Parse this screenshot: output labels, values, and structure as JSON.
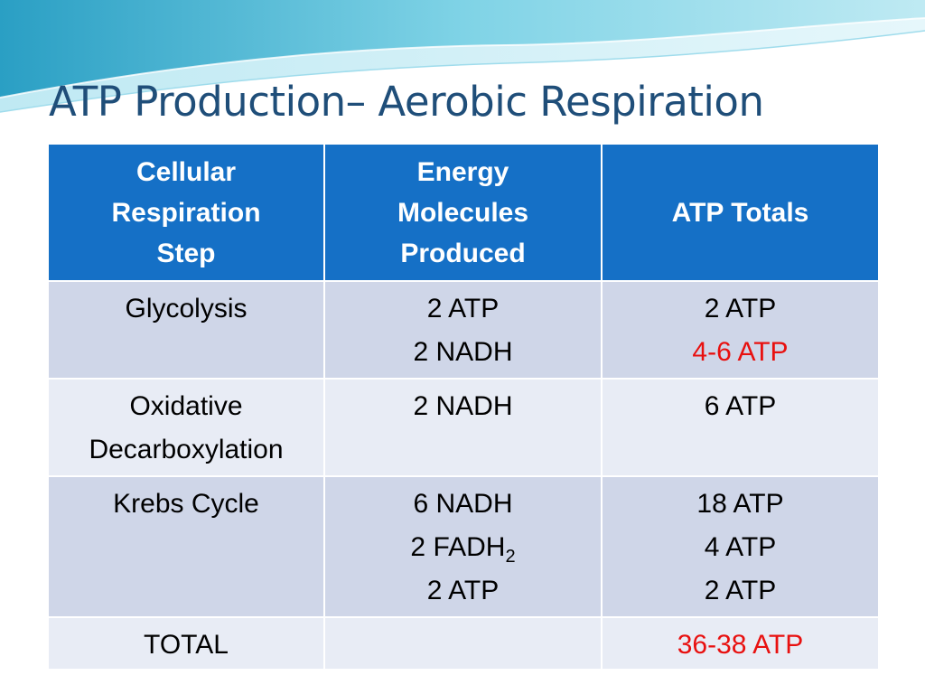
{
  "slide": {
    "title": "ATP Production– Aerobic Respiration"
  },
  "table": {
    "headers": [
      [
        "Cellular",
        "Respiration",
        "Step"
      ],
      [
        "Energy",
        "Molecules",
        "Produced"
      ],
      [
        "ATP Totals"
      ]
    ],
    "rows": [
      {
        "step": [
          "Glycolysis"
        ],
        "molecules": [
          "2 ATP",
          "2 NADH"
        ],
        "totals": [
          "2 ATP",
          "4-6 ATP"
        ]
      },
      {
        "step": [
          "Oxidative",
          "Decarboxylation"
        ],
        "molecules": [
          "2 NADH"
        ],
        "totals": [
          "6 ATP"
        ]
      },
      {
        "step": [
          "Krebs Cycle"
        ],
        "molecules": [
          "6 NADH",
          "2 FADH",
          "2",
          "2 ATP"
        ],
        "totals": [
          "18 ATP",
          "4 ATP",
          "2 ATP"
        ]
      },
      {
        "step": [
          "TOTAL"
        ],
        "molecules": [],
        "totals": [
          "36-38 ATP"
        ]
      }
    ]
  },
  "colors": {
    "header_bg": "#1570c6",
    "row_dark": "#cfd6e8",
    "row_light": "#e8ecf5",
    "highlight": "#e8100f",
    "title": "#1f4e79"
  }
}
